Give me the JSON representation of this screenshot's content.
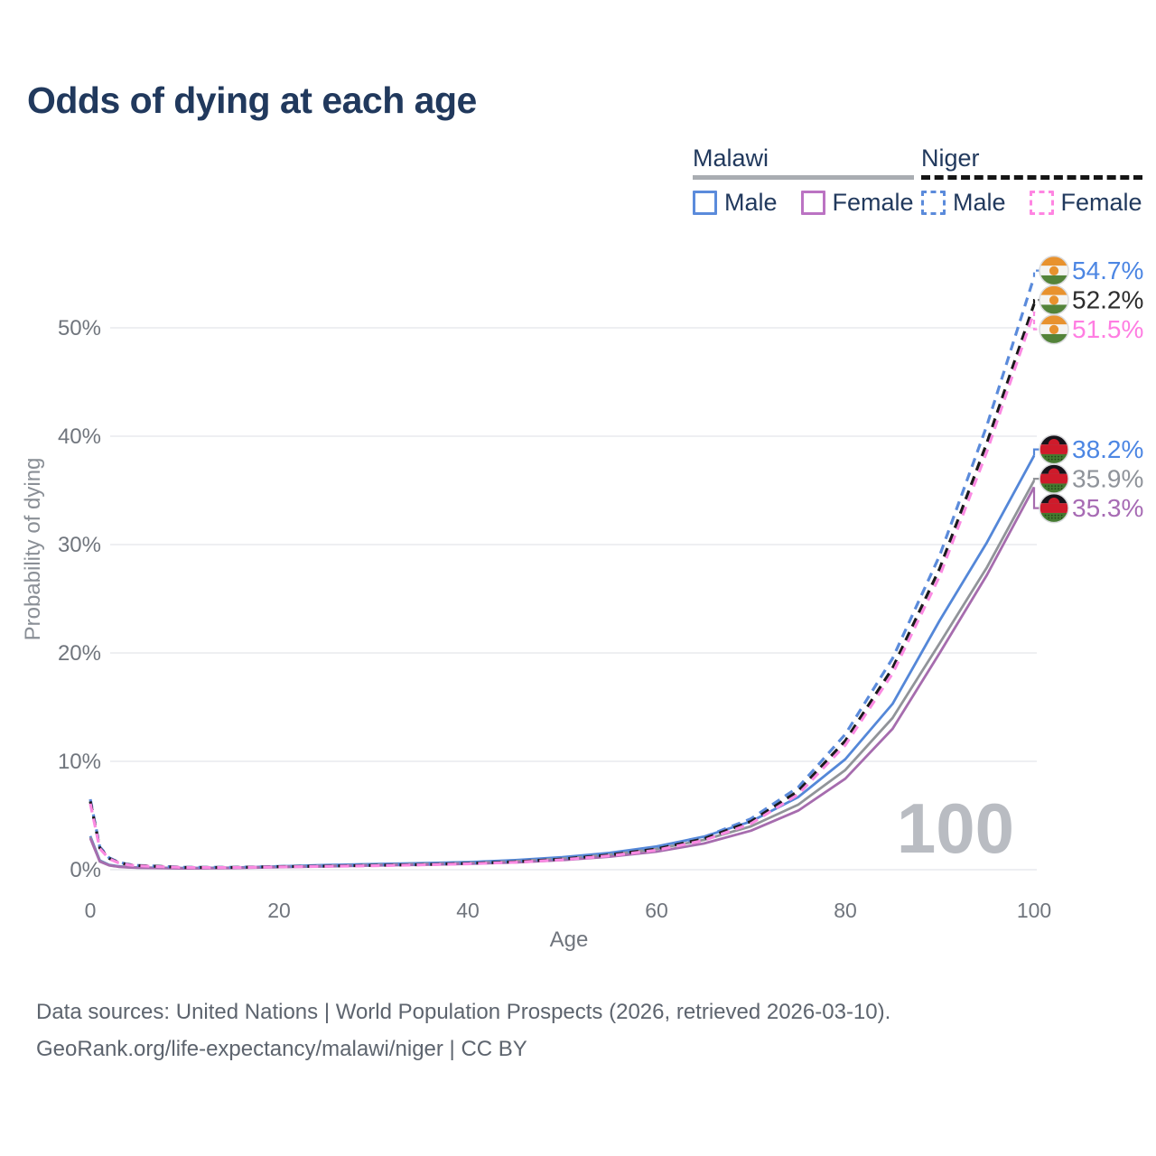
{
  "title": "Odds of dying at each age",
  "legend": {
    "groups": [
      {
        "name": "Malawi",
        "rule_style": "solid",
        "rule_color": "#a9adb2",
        "items": [
          {
            "label": "Male",
            "color": "#5b8bdb",
            "dashed": false
          },
          {
            "label": "Female",
            "color": "#bb73c3",
            "dashed": false
          }
        ]
      },
      {
        "name": "Niger",
        "rule_style": "dashed",
        "rule_color": "#151515",
        "items": [
          {
            "label": "Male",
            "color": "#5b8bdb",
            "dashed": true
          },
          {
            "label": "Female",
            "color": "#ff85e2",
            "dashed": true
          }
        ]
      }
    ]
  },
  "watermark": "100",
  "footer": {
    "line1": "Data sources: United Nations | World Population Prospects (2026, retrieved 2026-03-10).",
    "line2": "GeoRank.org/life-expectancy/malawi/niger | CC BY"
  },
  "chart_data": {
    "type": "line",
    "title": "Odds of dying at each age",
    "xlabel": "Age",
    "ylabel": "Probability of dying",
    "x_ticks": [
      0,
      20,
      40,
      60,
      80,
      100
    ],
    "y_ticks": [
      "0%",
      "10%",
      "20%",
      "30%",
      "40%",
      "50%"
    ],
    "y_tick_values": [
      0,
      10,
      20,
      30,
      40,
      50
    ],
    "xlim": [
      0,
      100
    ],
    "ylim": [
      0,
      57.5
    ],
    "grid": "horizontal",
    "legend_position": "top-right",
    "x": [
      0,
      1,
      2,
      3,
      4,
      5,
      10,
      15,
      20,
      25,
      30,
      35,
      40,
      45,
      50,
      55,
      60,
      65,
      70,
      75,
      80,
      85,
      90,
      95,
      100
    ],
    "series": [
      {
        "key": "niger-male",
        "name": "Niger Male",
        "country": "Niger",
        "sex": "Male",
        "color": "#5b8bdb",
        "dashed": true,
        "flag": "niger",
        "end_label": "54.7%",
        "label_color": "#4c86e3",
        "values": [
          6.5,
          2.1,
          1.1,
          0.7,
          0.5,
          0.4,
          0.22,
          0.22,
          0.3,
          0.36,
          0.43,
          0.5,
          0.62,
          0.78,
          1.05,
          1.45,
          2.05,
          3.0,
          4.7,
          7.6,
          12.5,
          19.5,
          29.0,
          41.0,
          54.7
        ]
      },
      {
        "key": "niger-total",
        "name": "Niger",
        "country": "Niger",
        "sex": "Both",
        "color": "#1a1a1a",
        "dashed": true,
        "flag": "niger",
        "end_label": "52.2%",
        "label_color": "#2d2d2d",
        "values": [
          6.3,
          2.0,
          1.05,
          0.66,
          0.47,
          0.38,
          0.21,
          0.21,
          0.28,
          0.33,
          0.4,
          0.47,
          0.58,
          0.73,
          0.98,
          1.36,
          1.92,
          2.85,
          4.45,
          7.25,
          11.9,
          18.6,
          27.8,
          39.4,
          52.2
        ]
      },
      {
        "key": "niger-female",
        "name": "Niger Female",
        "country": "Niger",
        "sex": "Female",
        "color": "#fb8ae2",
        "dashed": true,
        "flag": "niger",
        "end_label": "51.5%",
        "label_color": "#ff7de2",
        "values": [
          6.1,
          1.95,
          1.0,
          0.63,
          0.45,
          0.36,
          0.2,
          0.2,
          0.26,
          0.31,
          0.37,
          0.44,
          0.54,
          0.68,
          0.92,
          1.28,
          1.8,
          2.7,
          4.25,
          6.95,
          11.5,
          18.1,
          27.1,
          38.6,
          51.5
        ]
      },
      {
        "key": "malawi-male",
        "name": "Malawi Male",
        "country": "Malawi",
        "sex": "Male",
        "color": "#5487d8",
        "dashed": false,
        "flag": "malawi",
        "end_label": "38.2%",
        "label_color": "#4c86e3",
        "values": [
          3.1,
          0.85,
          0.45,
          0.32,
          0.25,
          0.21,
          0.15,
          0.19,
          0.31,
          0.43,
          0.52,
          0.6,
          0.7,
          0.88,
          1.15,
          1.55,
          2.15,
          3.05,
          4.45,
          6.7,
          10.2,
          15.3,
          23.0,
          30.2,
          38.2
        ]
      },
      {
        "key": "malawi-total",
        "name": "Malawi",
        "country": "Malawi",
        "sex": "Both",
        "color": "#919499",
        "dashed": false,
        "flag": "malawi",
        "end_label": "35.9%",
        "label_color": "#8f939a",
        "values": [
          3.0,
          0.8,
          0.42,
          0.29,
          0.23,
          0.19,
          0.13,
          0.17,
          0.27,
          0.37,
          0.45,
          0.53,
          0.62,
          0.78,
          1.02,
          1.38,
          1.92,
          2.75,
          4.0,
          6.0,
          9.2,
          14.0,
          20.9,
          27.9,
          35.9
        ]
      },
      {
        "key": "malawi-female",
        "name": "Malawi Female",
        "country": "Malawi",
        "sex": "Female",
        "color": "#a66cae",
        "dashed": false,
        "flag": "malawi",
        "end_label": "35.3%",
        "label_color": "#a76bb4",
        "values": [
          2.9,
          0.75,
          0.4,
          0.27,
          0.21,
          0.18,
          0.12,
          0.15,
          0.23,
          0.31,
          0.38,
          0.45,
          0.54,
          0.67,
          0.88,
          1.2,
          1.67,
          2.42,
          3.6,
          5.45,
          8.4,
          13.0,
          20.0,
          27.2,
          35.3
        ]
      }
    ],
    "flag_colors": {
      "niger": {
        "band1": "#e8922e",
        "band2": "#f4f4f2",
        "band3": "#538339",
        "roundel": "#e8922e"
      },
      "malawi": {
        "band1": "#17141a",
        "band2": "#cf1b2b",
        "band3": "#447a30",
        "sun": "#cf1b2b"
      }
    },
    "style": {
      "grid_color": "#e8eaed",
      "tick_color": "#70757d",
      "axis_label_color": "#8a8f96",
      "watermark_color": "#b9bcc2"
    }
  }
}
